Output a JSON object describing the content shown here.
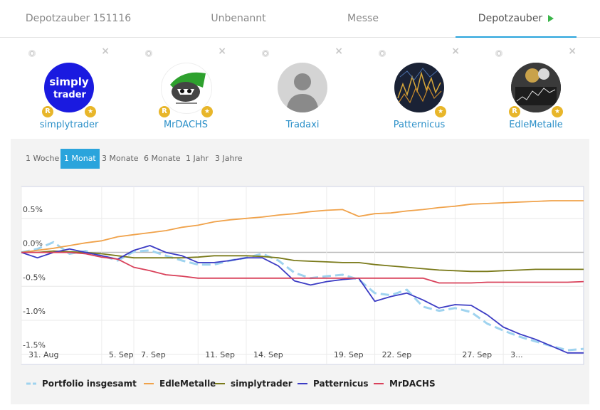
{
  "tabs": [
    {
      "label": "Depotzauber 151116",
      "active": false
    },
    {
      "label": "Unbenannt",
      "active": false
    },
    {
      "label": "Messe",
      "active": false
    },
    {
      "label": "Depotzauber",
      "active": true
    }
  ],
  "users": [
    {
      "name": "simplytrader",
      "avatar_text": [
        "simply",
        "trader"
      ],
      "badge_r": "R",
      "badge_star": "★"
    },
    {
      "name": "MrDACHS",
      "badge_r": "R",
      "badge_star": "★"
    },
    {
      "name": "Tradaxi"
    },
    {
      "name": "Patternicus",
      "badge_star": "★"
    },
    {
      "name": "EdleMetalle",
      "badge_r": "R",
      "badge_star": "★"
    }
  ],
  "ranges": [
    {
      "label": "1 Woche",
      "active": false
    },
    {
      "label": "1 Monat",
      "active": true
    },
    {
      "label": "3 Monate",
      "active": false
    },
    {
      "label": "6 Monate",
      "active": false
    },
    {
      "label": "1 Jahr",
      "active": false
    },
    {
      "label": "3 Jahre",
      "active": false
    }
  ],
  "colors": {
    "accent": "#2aa4dc",
    "tab_play": "#3bb54a",
    "badge": "#e8b62a"
  },
  "chart_data": {
    "type": "line",
    "ylim": [
      -1.65,
      0.97
    ],
    "y_ticks": [
      {
        "value": 0.5,
        "label": "0.5%"
      },
      {
        "value": 0.0,
        "label": "0.0%"
      },
      {
        "value": -0.5,
        "label": "-0.5%"
      },
      {
        "value": -1.0,
        "label": "-1.0%"
      },
      {
        "value": -1.5,
        "label": "-1.5%"
      }
    ],
    "xlim": [
      0,
      35
    ],
    "x_ticks": [
      {
        "value": 0,
        "label": "31. Aug"
      },
      {
        "value": 5,
        "label": "5. Sep"
      },
      {
        "value": 7,
        "label": "7. Sep"
      },
      {
        "value": 11,
        "label": "11. Sep"
      },
      {
        "value": 14,
        "label": "14. Sep"
      },
      {
        "value": 19,
        "label": "19. Sep"
      },
      {
        "value": 22,
        "label": "22. Sep"
      },
      {
        "value": 27,
        "label": "27. Sep"
      },
      {
        "value": 30,
        "label": "3..."
      }
    ],
    "series": [
      {
        "name": "Portfolio insgesamt",
        "color": "#9fd3ef",
        "dash": true,
        "x": [
          0,
          1,
          2,
          3,
          4,
          5,
          6,
          7,
          8,
          9,
          10,
          11,
          12,
          13,
          14,
          15,
          16,
          17,
          18,
          19,
          20,
          21,
          22,
          23,
          24,
          25,
          26,
          27,
          28,
          29,
          30,
          31,
          32,
          33,
          34,
          35
        ],
        "y": [
          0,
          0.05,
          0.15,
          -0.02,
          0.02,
          -0.05,
          -0.12,
          0.01,
          0.03,
          -0.05,
          -0.12,
          -0.18,
          -0.18,
          -0.12,
          -0.08,
          -0.02,
          -0.12,
          -0.3,
          -0.38,
          -0.35,
          -0.33,
          -0.4,
          -0.6,
          -0.63,
          -0.55,
          -0.8,
          -0.86,
          -0.82,
          -0.88,
          -1.05,
          -1.15,
          -1.24,
          -1.31,
          -1.38,
          -1.44,
          -1.42
        ]
      },
      {
        "name": "EdleMetalle",
        "color": "#f0a24a",
        "dash": false,
        "x": [
          0,
          1,
          2,
          3,
          4,
          5,
          6,
          7,
          8,
          9,
          10,
          11,
          12,
          13,
          14,
          15,
          16,
          17,
          18,
          19,
          20,
          21,
          22,
          23,
          24,
          25,
          26,
          27,
          28,
          29,
          30,
          31,
          32,
          33,
          34,
          35
        ],
        "y": [
          0,
          0.03,
          0.06,
          0.1,
          0.14,
          0.17,
          0.23,
          0.26,
          0.29,
          0.32,
          0.37,
          0.4,
          0.45,
          0.48,
          0.5,
          0.52,
          0.55,
          0.57,
          0.6,
          0.62,
          0.63,
          0.53,
          0.57,
          0.58,
          0.61,
          0.63,
          0.66,
          0.68,
          0.71,
          0.72,
          0.73,
          0.74,
          0.75,
          0.76,
          0.76,
          0.76
        ]
      },
      {
        "name": "simplytrader",
        "color": "#7a7a1a",
        "dash": false,
        "x": [
          0,
          1,
          2,
          3,
          4,
          5,
          6,
          7,
          8,
          9,
          10,
          11,
          12,
          13,
          14,
          15,
          16,
          17,
          18,
          19,
          20,
          21,
          22,
          23,
          24,
          25,
          26,
          27,
          28,
          29,
          30,
          31,
          32,
          33,
          34,
          35
        ],
        "y": [
          0,
          0,
          0.02,
          0.01,
          0,
          -0.02,
          -0.05,
          -0.08,
          -0.08,
          -0.08,
          -0.08,
          -0.07,
          -0.05,
          -0.05,
          -0.05,
          -0.06,
          -0.08,
          -0.12,
          -0.13,
          -0.14,
          -0.15,
          -0.15,
          -0.18,
          -0.2,
          -0.22,
          -0.24,
          -0.26,
          -0.27,
          -0.28,
          -0.28,
          -0.27,
          -0.26,
          -0.25,
          -0.25,
          -0.25,
          -0.25
        ]
      },
      {
        "name": "Patternicus",
        "color": "#3c3cc4",
        "dash": false,
        "x": [
          0,
          1,
          2,
          3,
          4,
          5,
          6,
          7,
          8,
          9,
          10,
          11,
          12,
          13,
          14,
          15,
          16,
          17,
          18,
          19,
          20,
          21,
          22,
          23,
          24,
          25,
          26,
          27,
          28,
          29,
          30,
          31,
          32,
          33,
          34,
          35
        ],
        "y": [
          0,
          -0.08,
          0,
          0.05,
          0,
          -0.05,
          -0.1,
          0.03,
          0.1,
          0,
          -0.05,
          -0.15,
          -0.15,
          -0.12,
          -0.08,
          -0.08,
          -0.2,
          -0.42,
          -0.48,
          -0.43,
          -0.4,
          -0.38,
          -0.72,
          -0.65,
          -0.6,
          -0.7,
          -0.82,
          -0.77,
          -0.78,
          -0.92,
          -1.1,
          -1.2,
          -1.28,
          -1.38,
          -1.48,
          -1.48
        ]
      },
      {
        "name": "MrDACHS",
        "color": "#d9415a",
        "dash": false,
        "x": [
          0,
          1,
          2,
          3,
          4,
          5,
          6,
          7,
          8,
          9,
          10,
          11,
          12,
          13,
          14,
          15,
          16,
          17,
          18,
          19,
          20,
          21,
          22,
          23,
          24,
          25,
          26,
          27,
          28,
          29,
          30,
          31,
          32,
          33,
          34,
          35
        ],
        "y": [
          0,
          0,
          0,
          0,
          -0.02,
          -0.07,
          -0.1,
          -0.22,
          -0.27,
          -0.33,
          -0.35,
          -0.38,
          -0.38,
          -0.38,
          -0.38,
          -0.38,
          -0.38,
          -0.38,
          -0.38,
          -0.38,
          -0.38,
          -0.38,
          -0.38,
          -0.38,
          -0.38,
          -0.38,
          -0.45,
          -0.45,
          -0.45,
          -0.44,
          -0.44,
          -0.44,
          -0.44,
          -0.44,
          -0.44,
          -0.43
        ]
      }
    ]
  }
}
